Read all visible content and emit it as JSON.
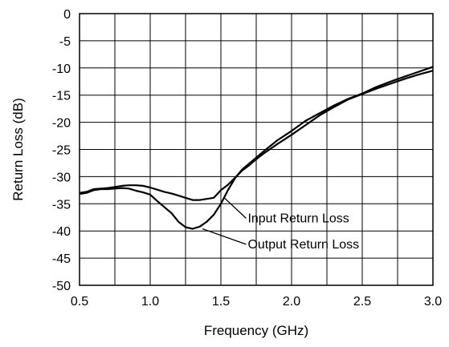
{
  "chart_data": {
    "type": "line",
    "xlabel": "Frequency (GHz)",
    "ylabel": "Return Loss (dB)",
    "xlim": [
      0.5,
      3.0
    ],
    "ylim": [
      -50,
      0
    ],
    "x_ticks": [
      0.5,
      1.0,
      1.5,
      2.0,
      2.5,
      3.0
    ],
    "x_tick_labels": [
      "0.5",
      "1.0",
      "1.5",
      "2.0",
      "2.5",
      "3.0"
    ],
    "y_ticks": [
      0,
      -5,
      -10,
      -15,
      -20,
      -25,
      -30,
      -35,
      -40,
      -45,
      -50
    ],
    "y_tick_labels": [
      "0",
      "-5",
      "-10",
      "-15",
      "-20",
      "-25",
      "-30",
      "-35",
      "-40",
      "-45",
      "-50"
    ],
    "x_grid_step": 0.25,
    "grid": true,
    "series": [
      {
        "name": "Input Return Loss",
        "x": [
          0.5,
          0.55,
          0.6,
          0.65,
          0.7,
          0.75,
          0.8,
          0.85,
          0.9,
          0.95,
          1.0,
          1.05,
          1.1,
          1.15,
          1.2,
          1.25,
          1.3,
          1.35,
          1.4,
          1.45,
          1.5,
          1.55,
          1.6,
          1.65,
          1.7,
          1.75,
          1.8,
          1.9,
          2.0,
          2.1,
          2.2,
          2.3,
          2.4,
          2.5,
          2.6,
          2.7,
          2.8,
          2.9,
          3.0
        ],
        "y": [
          -33.0,
          -32.8,
          -32.3,
          -32.2,
          -32.1,
          -31.9,
          -31.7,
          -31.6,
          -31.6,
          -31.7,
          -32.0,
          -32.4,
          -32.8,
          -33.1,
          -33.5,
          -33.9,
          -34.3,
          -34.3,
          -34.1,
          -33.9,
          -32.5,
          -31.5,
          -30.2,
          -28.9,
          -27.9,
          -26.8,
          -25.8,
          -24.0,
          -22.3,
          -20.5,
          -18.7,
          -17.2,
          -15.8,
          -14.8,
          -13.8,
          -12.9,
          -12.0,
          -11.2,
          -10.5
        ]
      },
      {
        "name": "Output Return Loss",
        "x": [
          0.5,
          0.55,
          0.6,
          0.65,
          0.7,
          0.75,
          0.8,
          0.85,
          0.9,
          0.95,
          1.0,
          1.05,
          1.1,
          1.15,
          1.2,
          1.25,
          1.3,
          1.35,
          1.4,
          1.45,
          1.5,
          1.55,
          1.6,
          1.65,
          1.7,
          1.75,
          1.8,
          1.9,
          2.0,
          2.1,
          2.2,
          2.3,
          2.4,
          2.5,
          2.6,
          2.7,
          2.8,
          2.9,
          3.0
        ],
        "y": [
          -33.2,
          -33.0,
          -32.5,
          -32.3,
          -32.3,
          -32.2,
          -32.1,
          -32.2,
          -32.6,
          -32.9,
          -33.3,
          -34.5,
          -35.6,
          -36.7,
          -38.3,
          -39.3,
          -39.6,
          -39.2,
          -38.3,
          -37.0,
          -35.0,
          -32.5,
          -30.3,
          -28.7,
          -27.6,
          -26.5,
          -25.4,
          -23.3,
          -21.6,
          -19.7,
          -18.3,
          -16.9,
          -15.7,
          -14.7,
          -13.5,
          -12.5,
          -11.6,
          -10.7,
          -9.8
        ]
      }
    ],
    "annotations": [
      {
        "text": "Input Return Loss",
        "x": 1.52,
        "y": -33.8,
        "label_x": 1.69,
        "label_y": -38.4
      },
      {
        "text": "Output Return Loss",
        "x": 1.37,
        "y": -39.6,
        "label_x": 1.69,
        "label_y": -43.2
      }
    ]
  }
}
